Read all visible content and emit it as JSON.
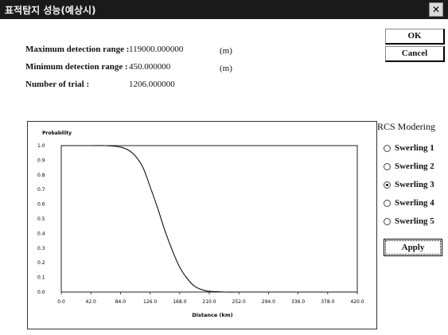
{
  "window": {
    "title": "표적탐지 성능(예상시)",
    "close_icon": "close-icon"
  },
  "fields": {
    "max_label": "Maximum detection range :",
    "max_value": "119000.000000",
    "max_unit": "(m)",
    "min_label": "Minimum detection range :",
    "min_value": "450.000000",
    "min_unit": "(m)",
    "trial_label": "Number of trial :",
    "trial_value": "1206.000000"
  },
  "buttons": {
    "ok": "OK",
    "cancel": "Cancel",
    "apply": "Apply"
  },
  "rcs": {
    "title": "RCS Modering",
    "options": [
      "Swerling 1",
      "Swerling 2",
      "Swerling 3",
      "Swerling 4",
      "Swerling 5"
    ],
    "selected": "Swerling 3"
  },
  "chart_data": {
    "type": "line",
    "title": "",
    "ylabel": "Probability",
    "xlabel": "Distance (km)",
    "xlim": [
      0,
      420
    ],
    "ylim": [
      0,
      1
    ],
    "x_ticks": [
      "0.0",
      "42.0",
      "84.0",
      "126.0",
      "168.0",
      "210.0",
      "252.0",
      "294.0",
      "336.0",
      "378.0",
      "420.0"
    ],
    "y_ticks": [
      "1.0",
      "0.9",
      "0.8",
      "0.7",
      "0.6",
      "0.5",
      "0.4",
      "0.3",
      "0.2",
      "0.1",
      "0.0"
    ],
    "x": [
      0,
      42,
      63,
      84,
      95,
      105,
      116,
      126,
      137,
      147,
      158,
      168,
      179,
      189,
      200,
      210,
      231,
      252,
      294,
      336,
      378,
      420
    ],
    "y": [
      1.0,
      1.0,
      1.0,
      0.99,
      0.97,
      0.93,
      0.85,
      0.72,
      0.57,
      0.42,
      0.28,
      0.17,
      0.09,
      0.04,
      0.015,
      0.005,
      0.0,
      0.0,
      0.0,
      0.0,
      0.0,
      0.0
    ],
    "grid": false,
    "legend": "none"
  }
}
